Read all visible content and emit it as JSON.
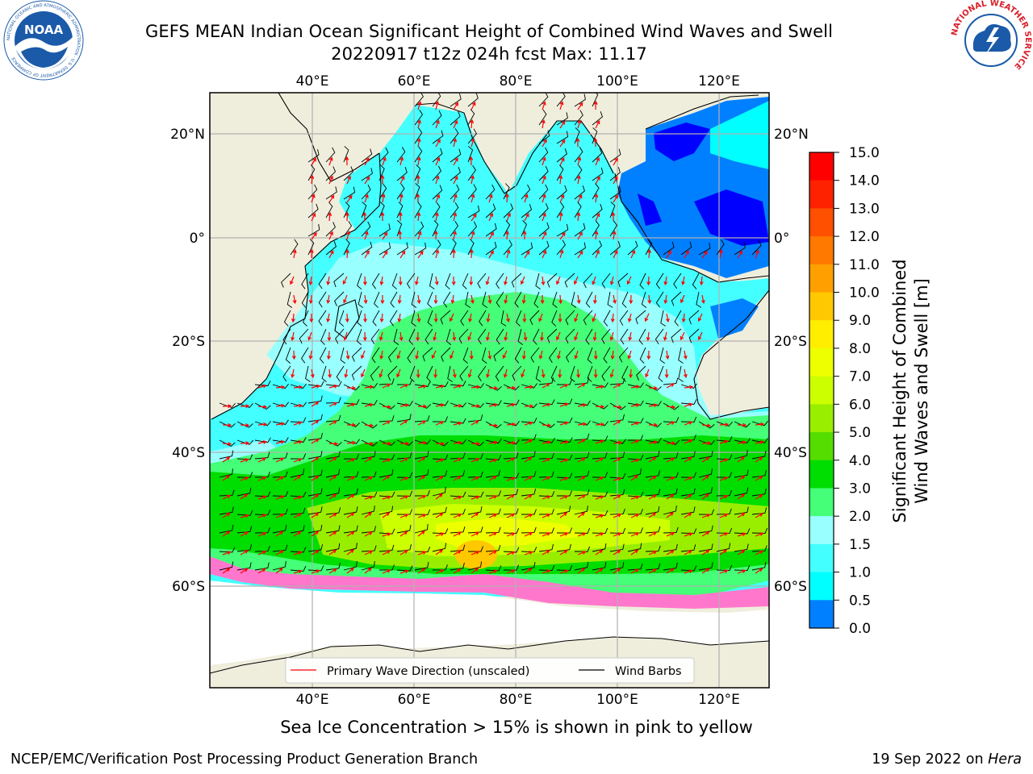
{
  "header": {
    "title_line1": "GEFS MEAN Indian Ocean Significant Height of Combined Wind Waves and Swell",
    "title_line2": "20220917 t12z 024h fcst   Max: 11.17"
  },
  "logos": {
    "noaa": {
      "text": "NOAA",
      "ring_text": "NATIONAL OCEANIC AND ATMOSPHERIC ADMINISTRATION · U.S. DEPARTMENT OF COMMERCE",
      "color": "#1a5aa8"
    },
    "nws": {
      "text": "NATIONAL WEATHER SERVICE",
      "color": "#d8202a"
    }
  },
  "map": {
    "top_axis_labels": [
      "40°E",
      "60°E",
      "80°E",
      "100°E",
      "120°E"
    ],
    "bottom_axis_labels": [
      "40°E",
      "60°E",
      "80°E",
      "100°E",
      "120°E"
    ],
    "left_axis_labels": [
      "20°N",
      "0°",
      "20°S",
      "40°S",
      "60°S"
    ],
    "right_axis_labels": [
      "20°N",
      "0°",
      "20°S",
      "40°S",
      "60°S"
    ],
    "land_color": "#efeedd",
    "grid_color": "#b0b0b0"
  },
  "legend": {
    "wave_label": "Primary Wave Direction (unscaled)",
    "wave_color": "#ff0000",
    "barb_label": "Wind Barbs",
    "barb_color": "#000000"
  },
  "colorbar": {
    "label_line1": "Significant Height of Combined",
    "label_line2": "Wind Waves and Swell [m]",
    "ticks": [
      "15.0",
      "14.0",
      "13.0",
      "12.0",
      "11.0",
      "10.0",
      "9.0",
      "8.0",
      "7.0",
      "6.0",
      "5.0",
      "4.0",
      "3.0",
      "2.0",
      "1.5",
      "1.0",
      "0.5",
      "0.0"
    ],
    "colors": [
      "#ff0000",
      "#ff2200",
      "#ff5000",
      "#ff7800",
      "#ffa000",
      "#ffc800",
      "#ffee00",
      "#eeff00",
      "#ccff00",
      "#99ee00",
      "#55dd00",
      "#00dd00",
      "#44ff77",
      "#99ffff",
      "#44ffff",
      "#00ffff",
      "#0080ff",
      "#0000ff"
    ]
  },
  "captions": {
    "sea_ice": "Sea Ice Concentration > 15% is shown in pink to yellow",
    "footer_left": "NCEP/EMC/Verification Post Processing Product Generation Branch",
    "footer_date": "19 Sep 2022 on",
    "footer_host": "Hera"
  }
}
